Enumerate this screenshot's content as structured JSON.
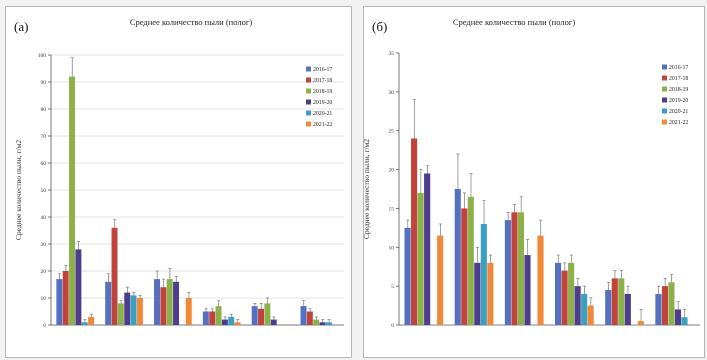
{
  "series_colors": [
    "#5470c0",
    "#c0443c",
    "#8cb04a",
    "#4e3c8c",
    "#3aa0c0",
    "#f0883a"
  ],
  "chart_data": [
    {
      "type": "bar",
      "panel": "(а)",
      "title": "Среднее количество пыли (полог)",
      "ylabel": "Среднее количество пыли, г/м2",
      "ylim": [
        0,
        100
      ],
      "yticks": [
        0,
        10,
        20,
        30,
        40,
        50,
        60,
        70,
        80,
        90,
        100
      ],
      "grid": true,
      "legend": "right",
      "categories": [
        "",
        "",
        "",
        "",
        "",
        ""
      ],
      "series": [
        {
          "name": "2016-17",
          "values": [
            17,
            16,
            17,
            5,
            7,
            7
          ],
          "errors": [
            2,
            3,
            3,
            1,
            1,
            2
          ]
        },
        {
          "name": "2017-18",
          "values": [
            20,
            36,
            14,
            5,
            6,
            5
          ],
          "errors": [
            2,
            3,
            3,
            1,
            2,
            1
          ]
        },
        {
          "name": "2018-19",
          "values": [
            92,
            8,
            17,
            7,
            8,
            2
          ],
          "errors": [
            7,
            1,
            4,
            2,
            2,
            1
          ]
        },
        {
          "name": "2019-20",
          "values": [
            28,
            12,
            16,
            2,
            2,
            1
          ],
          "errors": [
            3,
            2,
            2,
            1,
            1,
            1
          ]
        },
        {
          "name": "2020-21",
          "values": [
            1,
            11,
            0,
            3,
            0,
            1
          ],
          "errors": [
            1,
            1,
            0,
            1,
            0,
            1
          ]
        },
        {
          "name": "2021-22",
          "values": [
            3,
            10,
            10,
            1,
            0,
            0
          ],
          "errors": [
            1,
            1,
            2,
            1,
            0,
            0
          ]
        }
      ]
    },
    {
      "type": "bar",
      "panel": "(б)",
      "title": "Среднее количество пыли (полог)",
      "ylabel": "Среднее количество пыли, г/м2",
      "ylim": [
        0,
        35
      ],
      "yticks": [
        0,
        5,
        10,
        15,
        20,
        25,
        30,
        35
      ],
      "grid": false,
      "legend": "right",
      "categories": [
        "",
        "",
        "",
        "",
        "",
        ""
      ],
      "series": [
        {
          "name": "2016-17",
          "values": [
            12.5,
            17.5,
            13.5,
            8,
            4.5,
            4
          ],
          "errors": [
            1,
            4.5,
            1,
            1,
            1,
            1
          ]
        },
        {
          "name": "2017-18",
          "values": [
            24,
            15,
            14.5,
            7,
            6,
            5
          ],
          "errors": [
            5,
            2,
            1,
            1,
            1,
            1
          ]
        },
        {
          "name": "2018-19",
          "values": [
            17,
            16.5,
            14.5,
            8,
            6,
            5.5
          ],
          "errors": [
            3,
            3,
            2,
            1,
            1,
            1
          ]
        },
        {
          "name": "2019-20",
          "values": [
            19.5,
            8,
            9,
            5,
            4,
            2
          ],
          "errors": [
            1,
            2,
            2,
            1,
            1,
            1
          ]
        },
        {
          "name": "2020-21",
          "values": [
            0,
            13,
            0,
            4,
            0,
            1
          ],
          "errors": [
            0,
            3,
            0,
            1,
            0,
            1
          ]
        },
        {
          "name": "2021-22",
          "values": [
            11.5,
            8,
            11.5,
            2.5,
            0.5,
            0
          ],
          "errors": [
            1.5,
            1,
            2,
            1,
            1.5,
            0
          ]
        }
      ]
    }
  ]
}
